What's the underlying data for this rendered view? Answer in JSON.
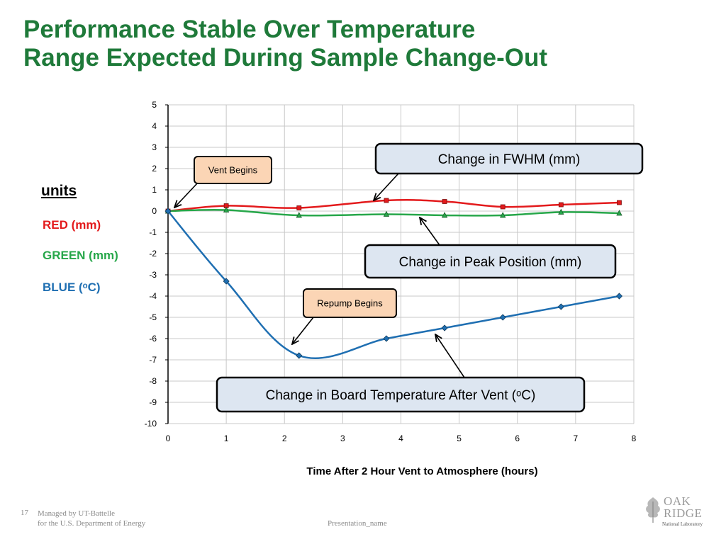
{
  "slide": {
    "title_line1": "Performance Stable Over Temperature",
    "title_line2": "Range Expected During Sample Change-Out",
    "page_number": "17",
    "footer_line1": "Managed by UT-Battelle",
    "footer_line2": "for the U.S. Department of Energy",
    "presentation_name": "Presentation_name",
    "logo": {
      "oak": "OAK",
      "ridge": "RIDGE",
      "sub": "National Laboratory"
    }
  },
  "units_legend": {
    "heading": "units",
    "rows": [
      {
        "label": "RED  (mm)",
        "color": "#e31a1c"
      },
      {
        "label": "GREEN  (mm)",
        "color": "#27a74a"
      },
      {
        "label": "BLUE  (ᵒC)",
        "color": "#1f6fb2"
      }
    ]
  },
  "chart_data": {
    "type": "line",
    "title": "",
    "xlabel": "Time After 2 Hour Vent to Atmosphere (hours)",
    "ylabel": "",
    "xlim": [
      0,
      8
    ],
    "ylim": [
      -10,
      5
    ],
    "xticks": [
      0,
      1,
      2,
      3,
      4,
      5,
      6,
      7,
      8
    ],
    "yticks": [
      5,
      4,
      3,
      2,
      1,
      0,
      -1,
      -2,
      -3,
      -4,
      -5,
      -6,
      -7,
      -8,
      -9,
      -10
    ],
    "grid": true,
    "series": [
      {
        "color": "#e31a1c",
        "marker": "square",
        "x": [
          0,
          1,
          2.25,
          3.75,
          4.75,
          5.75,
          6.75,
          7.75
        ],
        "y": [
          0,
          0.25,
          0.15,
          0.5,
          0.45,
          0.2,
          0.3,
          0.4
        ]
      },
      {
        "color": "#27a74a",
        "marker": "triangle",
        "x": [
          0,
          1,
          2.25,
          3.75,
          4.75,
          5.75,
          6.75,
          7.75
        ],
        "y": [
          0,
          0.05,
          -0.2,
          -0.15,
          -0.2,
          -0.2,
          -0.05,
          -0.1
        ]
      },
      {
        "color": "#1f6fb2",
        "marker": "diamond",
        "x": [
          0,
          1,
          2.25,
          3.75,
          4.75,
          5.75,
          6.75,
          7.75
        ],
        "y": [
          0,
          -3.3,
          -6.8,
          -6,
          -5.5,
          -5,
          -4.5,
          -4
        ]
      }
    ],
    "annotations": [
      {
        "text": "Change in FWHM  (mm)",
        "style": "blue"
      },
      {
        "text": "Change in Peak Position  (mm)",
        "style": "blue"
      },
      {
        "text": "Change in Board Temperature After Vent (ᵒC)",
        "style": "blue"
      },
      {
        "text": "Vent Begins",
        "style": "peach"
      },
      {
        "text": "Repump Begins",
        "style": "peach"
      }
    ]
  }
}
